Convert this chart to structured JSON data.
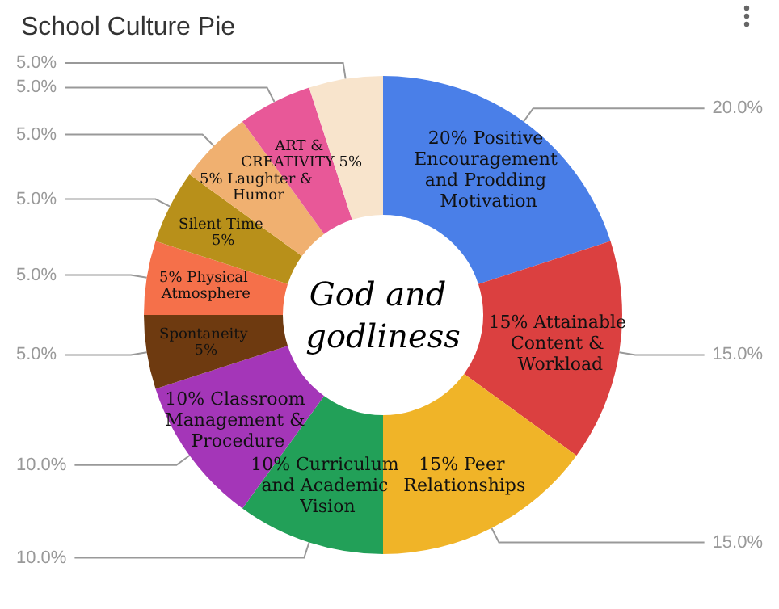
{
  "chart_data": {
    "type": "donut",
    "title": "School Culture Pie",
    "categories": [
      "20% Positive Encouragement and Prodding Motivation",
      "15% Attainable Content & Workload",
      "15% Peer Relationships",
      "10% Curriculum and Academic Vision",
      "10% Classroom Management & Procedure",
      "Spontaneity 5%",
      "5% Physical Atmosphere",
      "Silent Time 5%",
      "5% Laughter & Humor",
      "ART & CREATIVITY 5%",
      null
    ],
    "values": [
      20,
      15,
      15,
      10,
      10,
      5,
      5,
      5,
      5,
      5,
      5
    ],
    "colors": [
      "#4a7fe8",
      "#db4040",
      "#f0b428",
      "#22a058",
      "#a436b8",
      "#6e3a10",
      "#f5704a",
      "#b8901a",
      "#f0b070",
      "#e85898",
      "#f8e4cc"
    ],
    "value_labels": [
      "20.0%",
      "15.0%",
      "15.0%",
      "10.0%",
      "10.0%",
      "5.0%",
      "5.0%",
      "5.0%",
      "5.0%",
      "5.0%",
      "5.0%"
    ],
    "annotations": [
      "God and godliness"
    ],
    "legend": false
  }
}
